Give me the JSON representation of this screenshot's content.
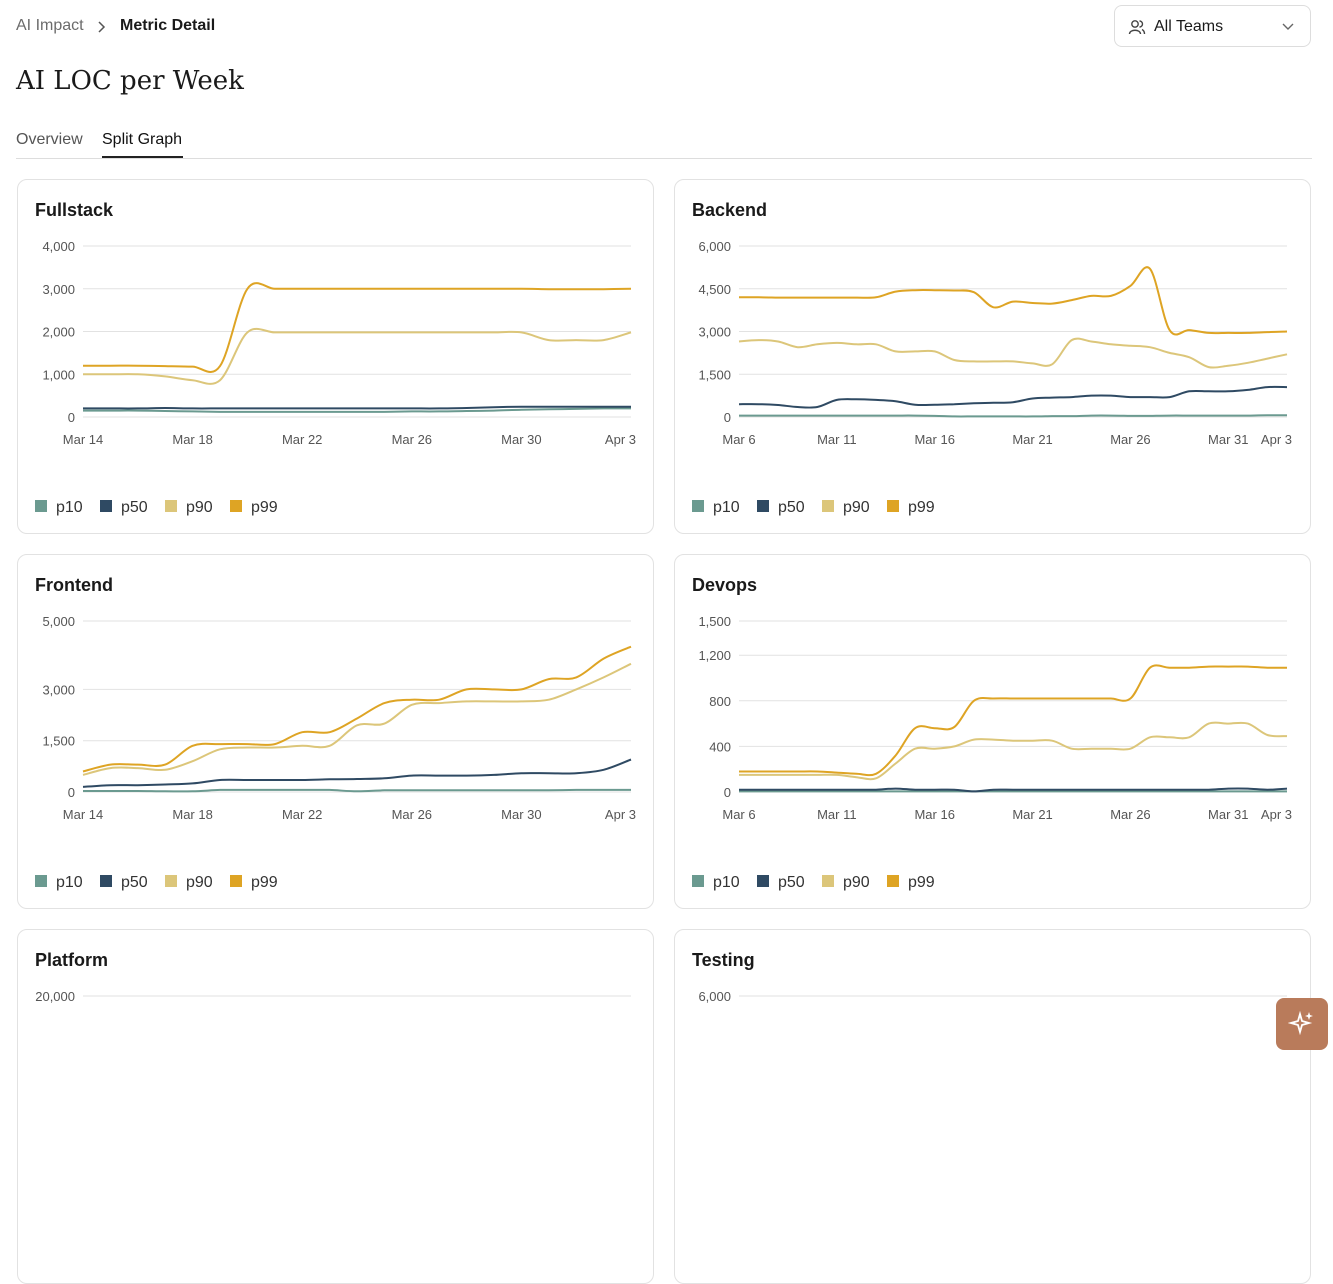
{
  "breadcrumb": [
    "AI Impact",
    "Metric Detail"
  ],
  "team_filter": "All Teams",
  "title": "AI LOC per Week",
  "tabs": [
    "Overview",
    "Split Graph"
  ],
  "chart_data": [
    {
      "type": "line",
      "title": "Fullstack",
      "grid": true,
      "categories": [
        "Mar 14",
        null,
        null,
        null,
        "Mar 18",
        null,
        null,
        null,
        "Mar 22",
        null,
        null,
        null,
        "Mar 26",
        null,
        null,
        null,
        "Mar 30",
        null,
        null,
        null,
        "Apr 3"
      ],
      "ylim": [
        0,
        4000
      ],
      "yticks": [
        0,
        {
          "value": 1000,
          "label": "1,000"
        },
        {
          "value": 2000,
          "label": "2,000"
        },
        {
          "value": 3000,
          "label": "3,000"
        },
        {
          "value": 4000,
          "label": "4,000"
        }
      ],
      "series": [
        {
          "name": "p10",
          "color": "#6b9a90",
          "values": [
            150,
            150,
            150,
            140,
            130,
            120,
            120,
            120,
            120,
            120,
            120,
            120,
            130,
            130,
            140,
            150,
            170,
            180,
            190,
            200,
            200
          ]
        },
        {
          "name": "p50",
          "color": "#2f4a63",
          "values": [
            200,
            200,
            200,
            210,
            200,
            200,
            200,
            200,
            200,
            200,
            200,
            200,
            200,
            200,
            210,
            230,
            240,
            240,
            240,
            240,
            240
          ]
        },
        {
          "name": "p90",
          "color": "#dcc67a",
          "values": [
            1000,
            1000,
            1000,
            950,
            860,
            860,
            1980,
            1980,
            1980,
            1980,
            1980,
            1980,
            1980,
            1980,
            1980,
            1980,
            1980,
            1800,
            1800,
            1800,
            1980
          ]
        },
        {
          "name": "p99",
          "color": "#dea424",
          "values": [
            1200,
            1200,
            1200,
            1190,
            1180,
            1190,
            3000,
            3000,
            3000,
            3000,
            3000,
            3000,
            3000,
            3000,
            3000,
            3000,
            3000,
            2990,
            2990,
            2990,
            3000
          ]
        }
      ]
    },
    {
      "type": "line",
      "title": "Backend",
      "grid": true,
      "categories": [
        "Mar 6",
        null,
        null,
        null,
        null,
        "Mar 11",
        null,
        null,
        null,
        null,
        "Mar 16",
        null,
        null,
        null,
        null,
        "Mar 21",
        null,
        null,
        null,
        null,
        "Mar 26",
        null,
        null,
        null,
        null,
        "Mar 31",
        null,
        null,
        "Apr 3"
      ],
      "ylim": [
        0,
        6000
      ],
      "yticks": [
        0,
        {
          "value": 1500,
          "label": "1,500"
        },
        {
          "value": 3000,
          "label": "3,000"
        },
        {
          "value": 4500,
          "label": "4,500"
        },
        {
          "value": 6000,
          "label": "6,000"
        }
      ],
      "series": [
        {
          "name": "p10",
          "color": "#6b9a90",
          "values": [
            50,
            50,
            50,
            50,
            50,
            50,
            50,
            50,
            50,
            50,
            40,
            20,
            20,
            20,
            20,
            20,
            30,
            30,
            50,
            50,
            40,
            40,
            50,
            50,
            50,
            50,
            50,
            60,
            60
          ]
        },
        {
          "name": "p50",
          "color": "#2f4a63",
          "values": [
            450,
            450,
            420,
            350,
            350,
            600,
            620,
            600,
            550,
            430,
            430,
            450,
            480,
            500,
            520,
            650,
            680,
            700,
            750,
            750,
            700,
            700,
            700,
            900,
            900,
            900,
            950,
            1050,
            1050
          ]
        },
        {
          "name": "p90",
          "color": "#dcc67a",
          "values": [
            2650,
            2700,
            2650,
            2450,
            2550,
            2600,
            2550,
            2550,
            2300,
            2300,
            2300,
            2000,
            1950,
            1950,
            1950,
            1880,
            1850,
            2700,
            2650,
            2550,
            2500,
            2450,
            2250,
            2100,
            1750,
            1800,
            1900,
            2050,
            2200
          ]
        },
        {
          "name": "p99",
          "color": "#dea424",
          "values": [
            4200,
            4200,
            4190,
            4190,
            4190,
            4190,
            4190,
            4200,
            4400,
            4450,
            4450,
            4440,
            4380,
            3850,
            4050,
            4000,
            3980,
            4100,
            4250,
            4250,
            4600,
            5200,
            3050,
            3050,
            2950,
            2950,
            2950,
            2980,
            3000
          ]
        }
      ]
    },
    {
      "type": "line",
      "title": "Frontend",
      "grid": true,
      "categories": [
        "Mar 14",
        null,
        null,
        null,
        "Mar 18",
        null,
        null,
        null,
        "Mar 22",
        null,
        null,
        null,
        "Mar 26",
        null,
        null,
        null,
        "Mar 30",
        null,
        null,
        null,
        "Apr 3"
      ],
      "ylim": [
        0,
        5000
      ],
      "yticks": [
        0,
        {
          "value": 1500,
          "label": "1,500"
        },
        {
          "value": 3000,
          "label": "3,000"
        },
        {
          "value": 5000,
          "label": "5,000"
        }
      ],
      "series": [
        {
          "name": "p10",
          "color": "#6b9a90",
          "values": [
            30,
            30,
            30,
            20,
            20,
            60,
            60,
            60,
            60,
            60,
            20,
            50,
            50,
            50,
            50,
            50,
            50,
            50,
            60,
            60,
            60
          ]
        },
        {
          "name": "p50",
          "color": "#2f4a63",
          "values": [
            150,
            200,
            200,
            220,
            250,
            350,
            350,
            350,
            350,
            370,
            380,
            400,
            480,
            480,
            480,
            500,
            550,
            550,
            550,
            650,
            950
          ]
        },
        {
          "name": "p90",
          "color": "#dcc67a",
          "values": [
            500,
            700,
            700,
            650,
            900,
            1250,
            1300,
            1300,
            1350,
            1350,
            1950,
            2000,
            2550,
            2600,
            2650,
            2650,
            2650,
            2700,
            3000,
            3350,
            3750
          ]
        },
        {
          "name": "p99",
          "color": "#dea424",
          "values": [
            600,
            800,
            800,
            800,
            1350,
            1400,
            1400,
            1400,
            1750,
            1750,
            2150,
            2600,
            2700,
            2700,
            3000,
            3000,
            3000,
            3300,
            3350,
            3900,
            4250
          ]
        }
      ]
    },
    {
      "type": "line",
      "title": "Devops",
      "grid": true,
      "categories": [
        "Mar 6",
        null,
        null,
        null,
        null,
        "Mar 11",
        null,
        null,
        null,
        null,
        "Mar 16",
        null,
        null,
        null,
        null,
        "Mar 21",
        null,
        null,
        null,
        null,
        "Mar 26",
        null,
        null,
        null,
        null,
        "Mar 31",
        null,
        null,
        "Apr 3"
      ],
      "ylim": [
        0,
        1500
      ],
      "yticks": [
        0,
        400,
        800,
        {
          "value": 1200,
          "label": "1,200"
        },
        {
          "value": 1500,
          "label": "1,500"
        }
      ],
      "series": [
        {
          "name": "p10",
          "color": "#6b9a90",
          "values": [
            5,
            5,
            5,
            5,
            5,
            5,
            5,
            5,
            5,
            5,
            5,
            5,
            5,
            5,
            5,
            5,
            5,
            5,
            5,
            5,
            5,
            5,
            5,
            5,
            5,
            5,
            5,
            5,
            5
          ]
        },
        {
          "name": "p50",
          "color": "#2f4a63",
          "values": [
            20,
            20,
            20,
            20,
            20,
            20,
            20,
            20,
            30,
            20,
            20,
            20,
            5,
            20,
            20,
            20,
            20,
            20,
            20,
            20,
            20,
            20,
            20,
            20,
            20,
            30,
            30,
            20,
            30
          ]
        },
        {
          "name": "p90",
          "color": "#dcc67a",
          "values": [
            150,
            150,
            150,
            150,
            150,
            150,
            130,
            120,
            250,
            380,
            380,
            400,
            460,
            460,
            450,
            450,
            450,
            380,
            380,
            380,
            380,
            480,
            480,
            480,
            600,
            600,
            600,
            500,
            490
          ]
        },
        {
          "name": "p99",
          "color": "#dea424",
          "values": [
            180,
            180,
            180,
            180,
            180,
            170,
            160,
            160,
            320,
            560,
            560,
            570,
            800,
            820,
            820,
            820,
            820,
            820,
            820,
            820,
            820,
            1090,
            1090,
            1090,
            1100,
            1100,
            1100,
            1090,
            1090
          ]
        }
      ]
    },
    {
      "type": "line",
      "title": "Platform",
      "grid": true,
      "ylim": [
        0,
        20000
      ],
      "yticks": [
        {
          "value": 20000,
          "label": "20,000"
        }
      ]
    },
    {
      "type": "line",
      "title": "Testing",
      "grid": true,
      "ylim": [
        0,
        6000
      ],
      "yticks": [
        {
          "value": 6000,
          "label": "6,000"
        }
      ]
    }
  ]
}
